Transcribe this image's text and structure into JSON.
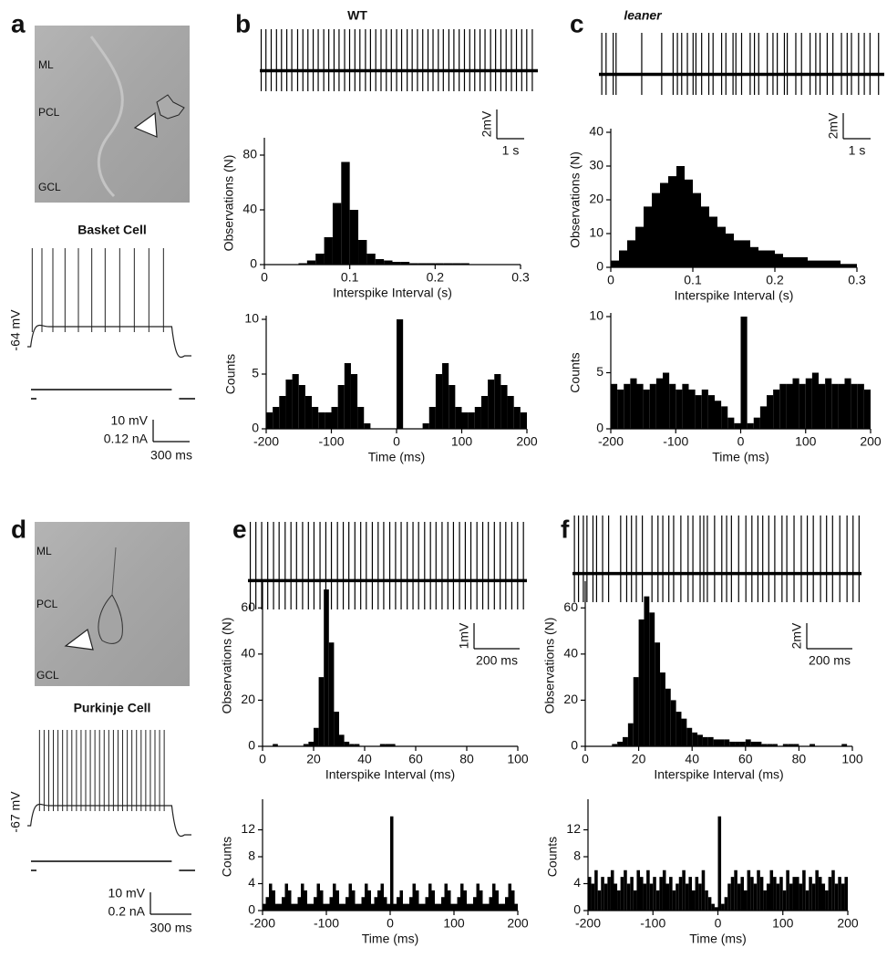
{
  "panel_letters": [
    "a",
    "b",
    "c",
    "d",
    "e",
    "f"
  ],
  "images": [
    {
      "labels": [
        "ML",
        "PCL",
        "GCL"
      ]
    },
    {
      "labels": [
        "ML",
        "PCL",
        "GCL"
      ]
    }
  ],
  "chart_data": [
    {
      "type": "current_clamp",
      "title": "Basket Cell",
      "resting_label": "-64 mV",
      "scale_y_label": "10 mV",
      "scale_i_label": "0.12 nA",
      "scale_x_label": "300 ms",
      "xlim": [
        0,
        1350
      ],
      "spikes": [
        40,
        120,
        210,
        310,
        420,
        530,
        640,
        760,
        880,
        1000,
        1120
      ]
    },
    {
      "type": "trace",
      "title": "WT",
      "scale_y_label": "2mV",
      "scale_x_label": "1 s",
      "xlim": [
        0,
        10
      ],
      "spikes": [
        0.05,
        0.22,
        0.41,
        0.6,
        0.78,
        0.97,
        1.15,
        1.36,
        1.55,
        1.73,
        1.92,
        2.1,
        2.3,
        2.48,
        2.67,
        2.85,
        3.05,
        3.23,
        3.42,
        3.6,
        3.8,
        3.98,
        4.17,
        4.36,
        4.55,
        4.73,
        4.92,
        5.1,
        5.3,
        5.48,
        5.67,
        5.86,
        6.05,
        6.23,
        6.42,
        6.6,
        6.8,
        6.98,
        7.17,
        7.36,
        7.55,
        7.73,
        7.92,
        8.1,
        8.3,
        8.48,
        8.67,
        8.86,
        9.05,
        9.23,
        9.42,
        9.6,
        9.8
      ]
    },
    {
      "type": "histogram",
      "x_label": "Interspike Interval (s)",
      "y_label": "Observations (N)",
      "xlim": [
        0,
        0.3
      ],
      "ylim": [
        0,
        90
      ],
      "xticks": [
        0,
        0.1,
        0.2,
        0.3
      ],
      "yticks": [
        0,
        40,
        80
      ],
      "bins": [
        0,
        0.01,
        0.02,
        0.03,
        0.04,
        0.05,
        0.06,
        0.07,
        0.08,
        0.09,
        0.1,
        0.11,
        0.12,
        0.13,
        0.14,
        0.15,
        0.16,
        0.17,
        0.18,
        0.19,
        0.2,
        0.21,
        0.22,
        0.23,
        0.24,
        0.25,
        0.26,
        0.27,
        0.28,
        0.29,
        0.3
      ],
      "counts": [
        0,
        0,
        0,
        0,
        1,
        3,
        8,
        20,
        45,
        75,
        40,
        18,
        8,
        4,
        3,
        2,
        2,
        1,
        1,
        1,
        1,
        1,
        1,
        1,
        0,
        0,
        0,
        0,
        0,
        0
      ]
    },
    {
      "type": "histogram",
      "x_label": "Time (ms)",
      "y_label": "Counts",
      "xlim": [
        -200,
        200
      ],
      "ylim": [
        0,
        10
      ],
      "xticks": [
        -200,
        -100,
        0,
        100,
        200
      ],
      "yticks": [
        0,
        5,
        10
      ],
      "bins": [
        -200,
        -190,
        -180,
        -170,
        -160,
        -150,
        -140,
        -130,
        -120,
        -110,
        -100,
        -90,
        -80,
        -70,
        -60,
        -50,
        -40,
        -30,
        -20,
        -10,
        0,
        10,
        20,
        30,
        40,
        50,
        60,
        70,
        80,
        90,
        100,
        110,
        120,
        130,
        140,
        150,
        160,
        170,
        180,
        190,
        200
      ],
      "counts": [
        1.5,
        2,
        3,
        4.5,
        5,
        4,
        3,
        2,
        1.5,
        1.5,
        2,
        4,
        6,
        5,
        2,
        0.5,
        0,
        0,
        0,
        0,
        10,
        0,
        0,
        0,
        0.5,
        2,
        5,
        6,
        4,
        2,
        1.5,
        1.5,
        2,
        3,
        4.5,
        5,
        4,
        3,
        2,
        1.5
      ]
    },
    {
      "type": "trace",
      "title": "leaner",
      "scale_y_label": "2mV",
      "scale_x_label": "1 s",
      "xlim": [
        0,
        10
      ],
      "spikes": [
        0.1,
        0.25,
        0.5,
        0.6,
        1.5,
        2.2,
        2.6,
        2.75,
        2.9,
        3.1,
        3.3,
        3.4,
        3.6,
        3.85,
        4.0,
        4.3,
        4.45,
        4.7,
        4.8,
        5.0,
        5.3,
        5.45,
        5.6,
        5.9,
        6.1,
        6.25,
        6.5,
        6.6,
        6.9,
        7.1,
        7.4,
        7.6,
        7.75,
        8.0,
        8.2,
        8.5,
        8.7,
        8.85,
        9.1,
        9.3,
        9.5,
        9.8
      ]
    },
    {
      "type": "histogram",
      "x_label": "Interspike Interval (s)",
      "y_label": "Observations (N)",
      "xlim": [
        0,
        0.3
      ],
      "ylim": [
        0,
        40
      ],
      "xticks": [
        0,
        0.1,
        0.2,
        0.3
      ],
      "yticks": [
        0,
        10,
        20,
        30,
        40
      ],
      "bins": [
        0,
        0.01,
        0.02,
        0.03,
        0.04,
        0.05,
        0.06,
        0.07,
        0.08,
        0.09,
        0.1,
        0.11,
        0.12,
        0.13,
        0.14,
        0.15,
        0.16,
        0.17,
        0.18,
        0.19,
        0.2,
        0.21,
        0.22,
        0.23,
        0.24,
        0.25,
        0.26,
        0.27,
        0.28,
        0.29,
        0.3
      ],
      "counts": [
        2,
        5,
        8,
        12,
        18,
        22,
        25,
        27,
        30,
        26,
        22,
        18,
        15,
        12,
        10,
        8,
        8,
        6,
        5,
        5,
        4,
        3,
        3,
        3,
        2,
        2,
        2,
        2,
        1,
        1
      ]
    },
    {
      "type": "histogram",
      "x_label": "Time (ms)",
      "y_label": "Counts",
      "xlim": [
        -200,
        200
      ],
      "ylim": [
        0,
        10
      ],
      "xticks": [
        -200,
        -100,
        0,
        100,
        200
      ],
      "yticks": [
        0,
        5,
        10
      ],
      "bins": [
        -200,
        -190,
        -180,
        -170,
        -160,
        -150,
        -140,
        -130,
        -120,
        -110,
        -100,
        -90,
        -80,
        -70,
        -60,
        -50,
        -40,
        -30,
        -20,
        -10,
        0,
        10,
        20,
        30,
        40,
        50,
        60,
        70,
        80,
        90,
        100,
        110,
        120,
        130,
        140,
        150,
        160,
        170,
        180,
        190,
        200
      ],
      "counts": [
        4,
        3.5,
        4,
        4.5,
        4,
        3.5,
        4,
        4.5,
        5,
        4,
        3.5,
        4,
        3.5,
        3,
        3.5,
        3,
        2.5,
        2,
        1,
        0.5,
        10,
        0.5,
        1,
        2,
        3,
        3.5,
        4,
        4,
        4.5,
        4,
        4.5,
        5,
        4,
        4.5,
        4,
        4,
        4.5,
        4,
        4,
        3.5
      ]
    },
    {
      "type": "current_clamp",
      "title": "Purkinje Cell",
      "resting_label": "-67 mV",
      "scale_y_label": "10 mV",
      "scale_i_label": "0.2 nA",
      "scale_x_label": "300 ms",
      "xlim": [
        0,
        1350
      ],
      "spikes": [
        100,
        138,
        176,
        214,
        252,
        290,
        328,
        366,
        404,
        442,
        480,
        518,
        556,
        594,
        632,
        670,
        708,
        746,
        784,
        822,
        860,
        898,
        936,
        974,
        1012,
        1050,
        1088,
        1126
      ]
    },
    {
      "type": "trace",
      "scale_y_label": "1mV",
      "scale_x_label": "200 ms",
      "xlim": [
        0,
        1200
      ],
      "spikes": [
        10,
        34,
        59,
        85,
        110,
        134,
        160,
        185,
        209,
        235,
        260,
        284,
        310,
        335,
        359,
        385,
        410,
        434,
        460,
        485,
        509,
        535,
        560,
        584,
        610,
        635,
        659,
        685,
        710,
        734,
        760,
        785,
        809,
        835,
        860,
        884,
        910,
        935,
        959,
        985,
        1010,
        1034,
        1060,
        1085,
        1109,
        1135,
        1160,
        1185
      ]
    },
    {
      "type": "histogram",
      "x_label": "Interspike Interval (ms)",
      "y_label": "Observations (N)",
      "xlim": [
        0,
        100
      ],
      "ylim": [
        0,
        70
      ],
      "xticks": [
        0,
        20,
        40,
        60,
        80,
        100
      ],
      "yticks": [
        0,
        20,
        40,
        60
      ],
      "bins": [
        0,
        2,
        4,
        6,
        8,
        10,
        12,
        14,
        16,
        18,
        20,
        22,
        24,
        26,
        28,
        30,
        32,
        34,
        36,
        38,
        40,
        42,
        44,
        46,
        48,
        50,
        52,
        54,
        56,
        58,
        60,
        62,
        64,
        66,
        68,
        70,
        72,
        74,
        76,
        78,
        80,
        82,
        84,
        86,
        88,
        90,
        92,
        94,
        96,
        98,
        100
      ],
      "counts": [
        0,
        0,
        1,
        0,
        0,
        0,
        0,
        0,
        1,
        2,
        8,
        30,
        68,
        45,
        15,
        5,
        2,
        1,
        1,
        0,
        0,
        0,
        0,
        1,
        1,
        1,
        0,
        0,
        0,
        0,
        0,
        0,
        0,
        0,
        0,
        0,
        0,
        0,
        0,
        0,
        0,
        0,
        0,
        0,
        0,
        0,
        0,
        0,
        0,
        0
      ]
    },
    {
      "type": "histogram",
      "x_label": "Time (ms)",
      "y_label": "Counts",
      "xlim": [
        -200,
        200
      ],
      "ylim": [
        0,
        16
      ],
      "xticks": [
        -200,
        -100,
        0,
        100,
        200
      ],
      "yticks": [
        0,
        4,
        8,
        12
      ],
      "bins": [
        -200,
        -195,
        -190,
        -185,
        -180,
        -175,
        -170,
        -165,
        -160,
        -155,
        -150,
        -145,
        -140,
        -135,
        -130,
        -125,
        -120,
        -115,
        -110,
        -105,
        -100,
        -95,
        -90,
        -85,
        -80,
        -75,
        -70,
        -65,
        -60,
        -55,
        -50,
        -45,
        -40,
        -35,
        -30,
        -25,
        -20,
        -15,
        -10,
        -5,
        0,
        5,
        10,
        15,
        20,
        25,
        30,
        35,
        40,
        45,
        50,
        55,
        60,
        65,
        70,
        75,
        80,
        85,
        90,
        95,
        100,
        105,
        110,
        115,
        120,
        125,
        130,
        135,
        140,
        145,
        150,
        155,
        160,
        165,
        170,
        175,
        180,
        185,
        190,
        195,
        200
      ],
      "counts": [
        1,
        2,
        4,
        3,
        1,
        1,
        2,
        4,
        3,
        1,
        1,
        2,
        4,
        3,
        1,
        1,
        2,
        4,
        3,
        1,
        1,
        2,
        4,
        3,
        1,
        1,
        2,
        4,
        3,
        1,
        1,
        2,
        4,
        3,
        1,
        2,
        3,
        4,
        2,
        1,
        14,
        1,
        2,
        3,
        1,
        1,
        2,
        4,
        3,
        1,
        1,
        2,
        4,
        3,
        1,
        1,
        2,
        4,
        3,
        1,
        1,
        2,
        4,
        3,
        1,
        1,
        2,
        4,
        3,
        1,
        1,
        2,
        4,
        3,
        1,
        1,
        2,
        4,
        3,
        1
      ]
    },
    {
      "type": "trace",
      "scale_y_label": "2mV",
      "scale_x_label": "200 ms",
      "xlim": [
        0,
        1200
      ],
      "spikes": [
        8,
        25,
        45,
        60,
        85,
        100,
        125,
        150,
        200,
        225,
        245,
        265,
        290,
        330,
        355,
        375,
        400,
        420,
        450,
        480,
        500,
        530,
        545,
        560,
        590,
        620,
        640,
        660,
        690,
        720,
        745,
        770,
        790,
        815,
        840,
        870,
        890,
        920,
        950,
        975,
        1000,
        1030,
        1055,
        1080,
        1110,
        1140,
        1165,
        1190
      ]
    },
    {
      "type": "histogram",
      "x_label": "Interspike Interval (ms)",
      "y_label": "Observations (N)",
      "xlim": [
        0,
        100
      ],
      "ylim": [
        0,
        70
      ],
      "xticks": [
        0,
        20,
        40,
        60,
        80,
        100
      ],
      "yticks": [
        0,
        20,
        40,
        60
      ],
      "bins": [
        0,
        2,
        4,
        6,
        8,
        10,
        12,
        14,
        16,
        18,
        20,
        22,
        24,
        26,
        28,
        30,
        32,
        34,
        36,
        38,
        40,
        42,
        44,
        46,
        48,
        50,
        52,
        54,
        56,
        58,
        60,
        62,
        64,
        66,
        68,
        70,
        72,
        74,
        76,
        78,
        80,
        82,
        84,
        86,
        88,
        90,
        92,
        94,
        96,
        98,
        100
      ],
      "counts": [
        0,
        0,
        0,
        0,
        0,
        1,
        2,
        4,
        10,
        30,
        55,
        65,
        58,
        45,
        32,
        25,
        20,
        15,
        12,
        8,
        6,
        5,
        4,
        4,
        3,
        3,
        3,
        2,
        2,
        2,
        3,
        2,
        2,
        1,
        1,
        1,
        0,
        1,
        1,
        1,
        0,
        0,
        1,
        0,
        0,
        0,
        0,
        0,
        1,
        0
      ]
    },
    {
      "type": "histogram",
      "x_label": "Time (ms)",
      "y_label": "Counts",
      "xlim": [
        -200,
        200
      ],
      "ylim": [
        0,
        16
      ],
      "xticks": [
        -200,
        -100,
        0,
        100,
        200
      ],
      "yticks": [
        0,
        4,
        8,
        12
      ],
      "bins": [
        -200,
        -195,
        -190,
        -185,
        -180,
        -175,
        -170,
        -165,
        -160,
        -155,
        -150,
        -145,
        -140,
        -135,
        -130,
        -125,
        -120,
        -115,
        -110,
        -105,
        -100,
        -95,
        -90,
        -85,
        -80,
        -75,
        -70,
        -65,
        -60,
        -55,
        -50,
        -45,
        -40,
        -35,
        -30,
        -25,
        -20,
        -15,
        -10,
        -5,
        0,
        5,
        10,
        15,
        20,
        25,
        30,
        35,
        40,
        45,
        50,
        55,
        60,
        65,
        70,
        75,
        80,
        85,
        90,
        95,
        100,
        105,
        110,
        115,
        120,
        125,
        130,
        135,
        140,
        145,
        150,
        155,
        160,
        165,
        170,
        175,
        180,
        185,
        190,
        195,
        200
      ],
      "counts": [
        5,
        4,
        6,
        3,
        5,
        4,
        5,
        6,
        4,
        3,
        5,
        6,
        4,
        5,
        3,
        6,
        5,
        4,
        6,
        4,
        5,
        3,
        5,
        6,
        4,
        5,
        3,
        4,
        5,
        6,
        4,
        5,
        3,
        5,
        4,
        6,
        3,
        2,
        1,
        0.5,
        14,
        1,
        2,
        4,
        5,
        6,
        4,
        5,
        3,
        6,
        5,
        4,
        6,
        5,
        3,
        4,
        6,
        5,
        4,
        5,
        3,
        6,
        4,
        5,
        5,
        4,
        6,
        3,
        5,
        4,
        6,
        5,
        4,
        3,
        5,
        6,
        4,
        5,
        4,
        5
      ]
    }
  ]
}
